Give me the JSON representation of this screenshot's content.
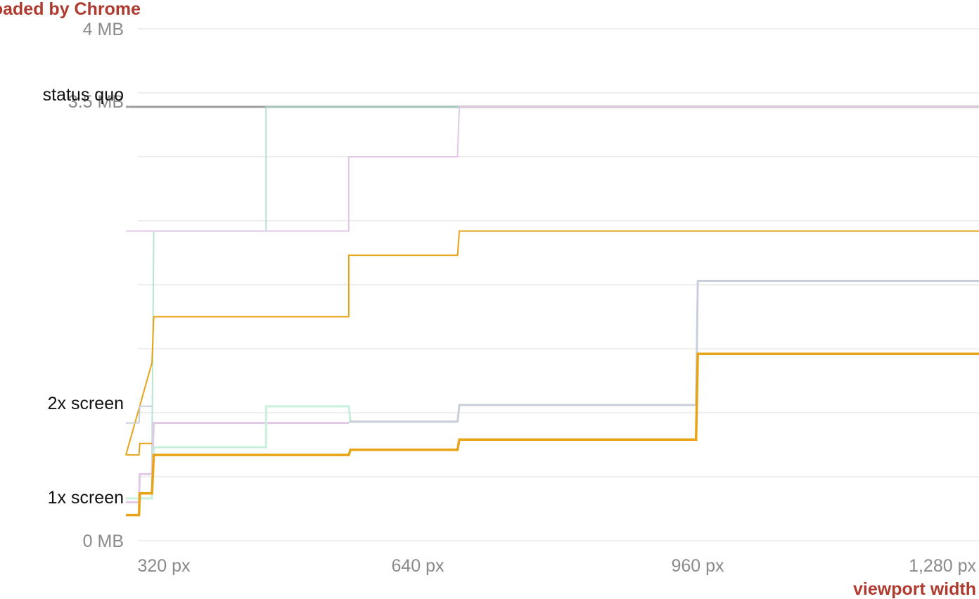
{
  "chart_data": {
    "type": "line",
    "title": "",
    "ylabel": "loaded by Chrome",
    "xlabel": "viewport width",
    "x_ticks": [
      {
        "value": 320,
        "label": "320 px"
      },
      {
        "value": 640,
        "label": "640 px"
      },
      {
        "value": 960,
        "label": "960 px"
      },
      {
        "value": 1280,
        "label": "1,280 px"
      }
    ],
    "y_ticks": [
      {
        "value": 0,
        "label": "0 MB"
      },
      {
        "value": 3.5,
        "label": "3.5 MB"
      },
      {
        "value": 4,
        "label": "4 MB"
      }
    ],
    "y_gridlines": [
      0,
      0.5,
      1,
      1.5,
      2,
      2.5,
      3,
      3.5,
      4
    ],
    "xlim": [
      300,
      1280
    ],
    "ylim": [
      0,
      4
    ],
    "annotations": [
      {
        "label": "status quo",
        "y": 3.39
      },
      {
        "label": "2x screen",
        "y": 1.02
      },
      {
        "label": "1x screen",
        "y": 0.3
      }
    ],
    "series": [
      {
        "color": "#9e9e9e",
        "width": 3,
        "opacity": 1,
        "points": [
          [
            300,
            3.39
          ],
          [
            1280,
            3.39
          ]
        ]
      },
      {
        "color": "#9fdcc4",
        "width": 2,
        "opacity": 0.75,
        "points": [
          [
            300,
            0.33
          ],
          [
            330,
            0.33
          ],
          [
            330,
            0.73
          ],
          [
            332,
            2.42
          ],
          [
            461,
            2.42
          ],
          [
            461,
            3.39
          ],
          [
            1280,
            3.39
          ]
        ]
      },
      {
        "color": "#e2c8e6",
        "width": 2,
        "opacity": 1,
        "points": [
          [
            300,
            2.42
          ],
          [
            556,
            2.42
          ],
          [
            556,
            3.0
          ],
          [
            681,
            3.0
          ],
          [
            683,
            3.39
          ],
          [
            1280,
            3.39
          ]
        ]
      },
      {
        "color": "#e8a317",
        "width": 2,
        "opacity": 1,
        "points": [
          [
            300,
            0.67
          ],
          [
            300,
            0.67
          ],
          [
            330,
            1.39
          ],
          [
            332,
            1.75
          ],
          [
            556,
            1.75
          ],
          [
            556,
            2.23
          ],
          [
            681,
            2.23
          ],
          [
            683,
            2.42
          ],
          [
            1280,
            2.42
          ]
        ]
      },
      {
        "color": "#c8ceda",
        "width": 2,
        "opacity": 1,
        "points": [
          [
            300,
            0.92
          ],
          [
            315,
            0.92
          ],
          [
            316,
            1.05
          ],
          [
            330,
            1.05
          ]
        ]
      },
      {
        "color": "#e8a317",
        "width": 2,
        "opacity": 1,
        "points": [
          [
            300,
            0.67
          ],
          [
            315,
            0.67
          ],
          [
            316,
            0.76
          ],
          [
            330,
            0.76
          ]
        ]
      },
      {
        "color": "#e2c8e6",
        "width": 3,
        "opacity": 1,
        "points": [
          [
            300,
            0.3
          ],
          [
            315,
            0.3
          ],
          [
            316,
            0.52
          ],
          [
            330,
            0.52
          ],
          [
            332,
            0.92
          ],
          [
            556,
            0.92
          ]
        ]
      },
      {
        "color": "#c8f0dc",
        "width": 3,
        "opacity": 1,
        "points": [
          [
            300,
            0.33
          ],
          [
            330,
            0.33
          ],
          [
            332,
            0.73
          ],
          [
            461,
            0.73
          ],
          [
            461,
            1.05
          ],
          [
            556,
            1.05
          ],
          [
            558,
            0.93
          ],
          [
            681,
            0.93
          ]
        ]
      },
      {
        "color": "#c8ceda",
        "width": 3,
        "opacity": 1,
        "points": [
          [
            556,
            0.93
          ],
          [
            681,
            0.93
          ],
          [
            683,
            1.06
          ],
          [
            955,
            1.06
          ],
          [
            957,
            2.03
          ],
          [
            1280,
            2.03
          ]
        ]
      },
      {
        "color": "#e8a317",
        "width": 3.5,
        "opacity": 1,
        "points": [
          [
            300,
            0.2
          ],
          [
            315,
            0.2
          ],
          [
            316,
            0.37
          ],
          [
            330,
            0.37
          ],
          [
            332,
            0.67
          ],
          [
            556,
            0.67
          ],
          [
            558,
            0.71
          ],
          [
            681,
            0.71
          ],
          [
            683,
            0.79
          ],
          [
            955,
            0.79
          ],
          [
            957,
            1.46
          ],
          [
            1280,
            1.46
          ]
        ]
      }
    ]
  }
}
